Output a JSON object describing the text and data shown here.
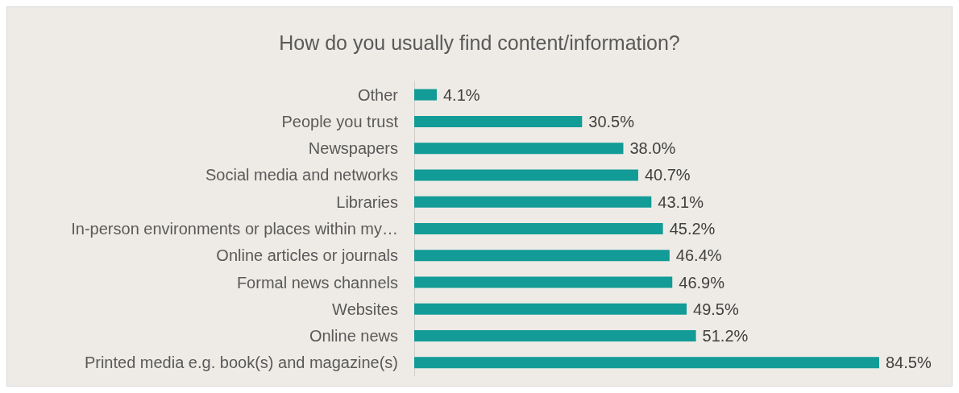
{
  "chart_data": {
    "type": "bar",
    "orientation": "horizontal",
    "title": "How do you usually find content/information?",
    "categories": [
      "Other",
      "People you trust",
      "Newspapers",
      "Social media and networks",
      "Libraries",
      "In-person environments or places within my…",
      "Online articles or journals",
      "Formal news channels",
      "Websites",
      "Online news",
      "Printed media e.g. book(s) and magazine(s)"
    ],
    "values": [
      4.1,
      30.5,
      38.0,
      40.7,
      43.1,
      45.2,
      46.4,
      46.9,
      49.5,
      51.2,
      84.5
    ],
    "value_labels": [
      "4.1%",
      "30.5%",
      "38.0%",
      "40.7%",
      "43.1%",
      "45.2%",
      "46.4%",
      "46.9%",
      "49.5%",
      "51.2%",
      "84.5%"
    ],
    "color": "#129b97"
  }
}
